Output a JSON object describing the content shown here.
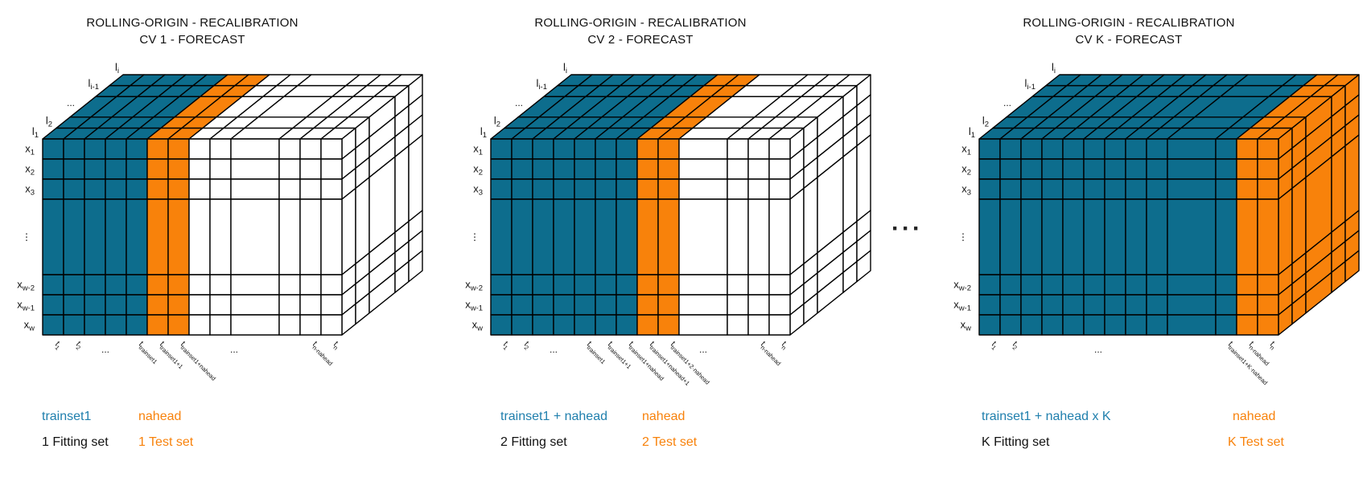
{
  "colors": {
    "fit": "#0d6d8d",
    "test": "#f8820b",
    "future": "#ffffff",
    "stroke": "#000000",
    "legend_fit_text": "#1f7fad",
    "legend_test_text": "#f8820b",
    "text": "#111111"
  },
  "separator": "···",
  "axes": {
    "x_labels": [
      {
        "main": "x",
        "sub": "1"
      },
      {
        "main": "x",
        "sub": "2"
      },
      {
        "main": "x",
        "sub": "3"
      },
      {
        "dots": "⋮"
      },
      {
        "main": "x",
        "sub": "w-2"
      },
      {
        "main": "x",
        "sub": "w-1"
      },
      {
        "main": "x",
        "sub": "w"
      }
    ],
    "l_labels": [
      {
        "main": "l",
        "sub": "1"
      },
      {
        "main": "l",
        "sub": "2"
      },
      {
        "dots": "..."
      },
      {
        "main": "l",
        "sub": "i-1"
      },
      {
        "main": "l",
        "sub": "i"
      }
    ]
  },
  "panels": [
    {
      "title1": "ROLLING-ORIGIN - RECALIBRATION",
      "title2": "CV 1 - FORECAST",
      "legend": {
        "fit": "trainset1",
        "test": "nahead",
        "fit_set": "1 Fitting set",
        "test_set": "1 Test set"
      },
      "cube": {
        "col_colors": [
          "fit",
          "fit",
          "fit",
          "fit",
          "fit",
          "test",
          "test",
          "future",
          "future",
          "future",
          "future",
          "future",
          "future"
        ],
        "side": "future",
        "t_labels": [
          {
            "col": 0,
            "main": "t",
            "sub": "1"
          },
          {
            "col": 1,
            "main": "t",
            "sub": "2"
          },
          {
            "dots": true,
            "b": 3,
            "off": 0
          },
          {
            "col": 4,
            "main": "t",
            "sub": "trainset1"
          },
          {
            "col": 5,
            "main": "t",
            "sub": "trainset1+1"
          },
          {
            "col": 6,
            "main": "t",
            "sub": "trainset1+nahead"
          },
          {
            "dots": true,
            "b": 9,
            "off": 4
          },
          {
            "col": 11,
            "main": "t",
            "sub": "n-nahead"
          },
          {
            "col": 12,
            "main": "t",
            "sub": "n"
          }
        ]
      }
    },
    {
      "title1": "ROLLING-ORIGIN - RECALIBRATION",
      "title2": "CV 2 - FORECAST",
      "legend": {
        "fit": "trainset1 + nahead",
        "test": "nahead",
        "fit_set": "2 Fitting set",
        "test_set": "2 Test set"
      },
      "cube": {
        "col_colors": [
          "fit",
          "fit",
          "fit",
          "fit",
          "fit",
          "fit",
          "fit",
          "test",
          "test",
          "future",
          "future",
          "future",
          "future"
        ],
        "side": "future",
        "t_labels": [
          {
            "col": 0,
            "main": "t",
            "sub": "1"
          },
          {
            "col": 1,
            "main": "t",
            "sub": "2"
          },
          {
            "dots": true,
            "b": 3,
            "off": 0
          },
          {
            "col": 4,
            "main": "t",
            "sub": "trainset1"
          },
          {
            "col": 5,
            "main": "t",
            "sub": "trainset1+1"
          },
          {
            "col": 6,
            "main": "t",
            "sub": "trainset1+nahead"
          },
          {
            "col": 7,
            "main": "t",
            "sub": "trainset1+nahead+1"
          },
          {
            "col": 8,
            "main": "t",
            "sub": "trainset1+2·nahead"
          },
          {
            "dots": true,
            "b": 9,
            "off": 30
          },
          {
            "col": 11,
            "main": "t",
            "sub": "n-nahead"
          },
          {
            "col": 12,
            "main": "t",
            "sub": "n"
          }
        ]
      }
    },
    {
      "title1": "ROLLING-ORIGIN - RECALIBRATION",
      "title2": "CV K - FORECAST",
      "legend": {
        "fit": "trainset1 + nahead x K",
        "test": "nahead",
        "fit_set": "K Fitting set",
        "test_set": "K Test set"
      },
      "cube": {
        "col_colors": [
          "fit",
          "fit",
          "fit",
          "fit",
          "fit",
          "fit",
          "fit",
          "fit",
          "fit",
          "fit",
          "fit",
          "test",
          "test"
        ],
        "side": "test",
        "t_labels": [
          {
            "col": 0,
            "main": "t",
            "sub": "1"
          },
          {
            "col": 1,
            "main": "t",
            "sub": "2"
          },
          {
            "dots": true,
            "b": 6,
            "off": -8
          },
          {
            "col": 10,
            "main": "t",
            "sub": "trainset1+K·nahead"
          },
          {
            "col": 11,
            "main": "t",
            "sub": "n-nahead"
          },
          {
            "col": 12,
            "main": "t",
            "sub": "n"
          }
        ]
      }
    }
  ]
}
